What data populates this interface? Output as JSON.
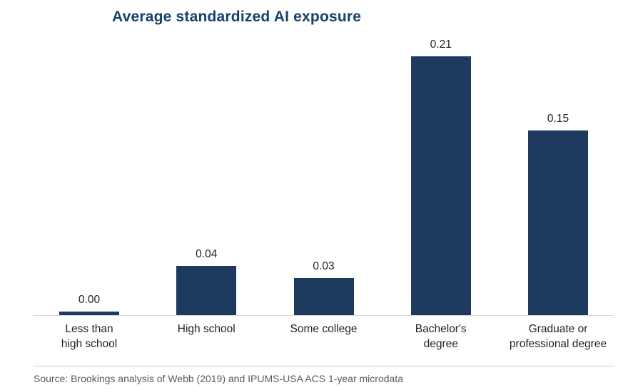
{
  "title": "Average standardized AI exposure",
  "source": "Source: Brookings analysis of Webb (2019) and IPUMS-USA ACS 1-year microdata",
  "colors": {
    "bar": "#1e3a5f",
    "title": "#17406b",
    "axis": "#d9d9d9",
    "source_text": "#58595b"
  },
  "chart_data": {
    "type": "bar",
    "title": "Average standardized AI exposure",
    "categories": [
      "Less than\nhigh school",
      "High school",
      "Some college",
      "Bachelor's\ndegree",
      "Graduate or\nprofessional degree"
    ],
    "values": [
      0.0,
      0.04,
      0.03,
      0.21,
      0.15
    ],
    "value_labels": [
      "0.00",
      "0.04",
      "0.03",
      "0.21",
      "0.15"
    ],
    "xlabel": "",
    "ylabel": "",
    "ylim": [
      0,
      0.23
    ],
    "grid": false,
    "legend": false,
    "bar_color": "#1e3a5f"
  }
}
